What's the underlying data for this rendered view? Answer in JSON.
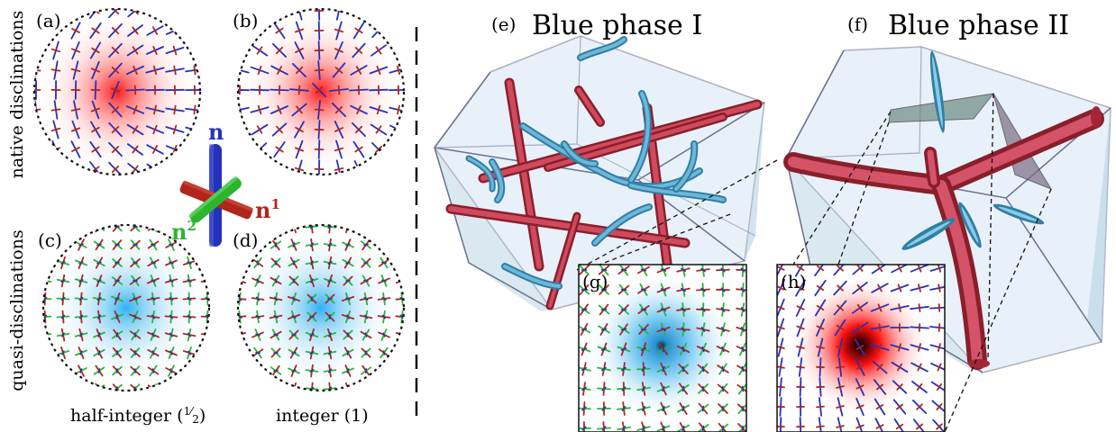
{
  "labels": {
    "a": "(a)",
    "b": "(b)",
    "c": "(c)",
    "d": "(d)",
    "e": "(e)",
    "f": "(f)",
    "g": "(g)",
    "h": "(h)"
  },
  "titles": {
    "e": "Blue phase I",
    "f": "Blue phase II"
  },
  "row_labels": {
    "top": "native disclinations",
    "bottom": "quasi-disclinations"
  },
  "captions": {
    "half": "half-integer (",
    "half_frac_num": "1",
    "half_frac_den": "2",
    "half_close": ")",
    "integer": "integer (1)"
  },
  "triad": {
    "n": "n",
    "n1": "n",
    "n1_sup": "1",
    "n2": "n",
    "n2_sup": "2"
  },
  "colors": {
    "n_blue": "#2531b8",
    "n1_red": "#b0261b",
    "n2_green": "#2db52d",
    "native_core": "#ff2020",
    "quasi_core": "#38b6f5",
    "tube_red": "#c8394a",
    "tube_blue": "#4a9ec4",
    "box_fill": "#cfe2f5"
  },
  "icons": [
    "director-triad-icon",
    "dashed-divider-icon"
  ]
}
